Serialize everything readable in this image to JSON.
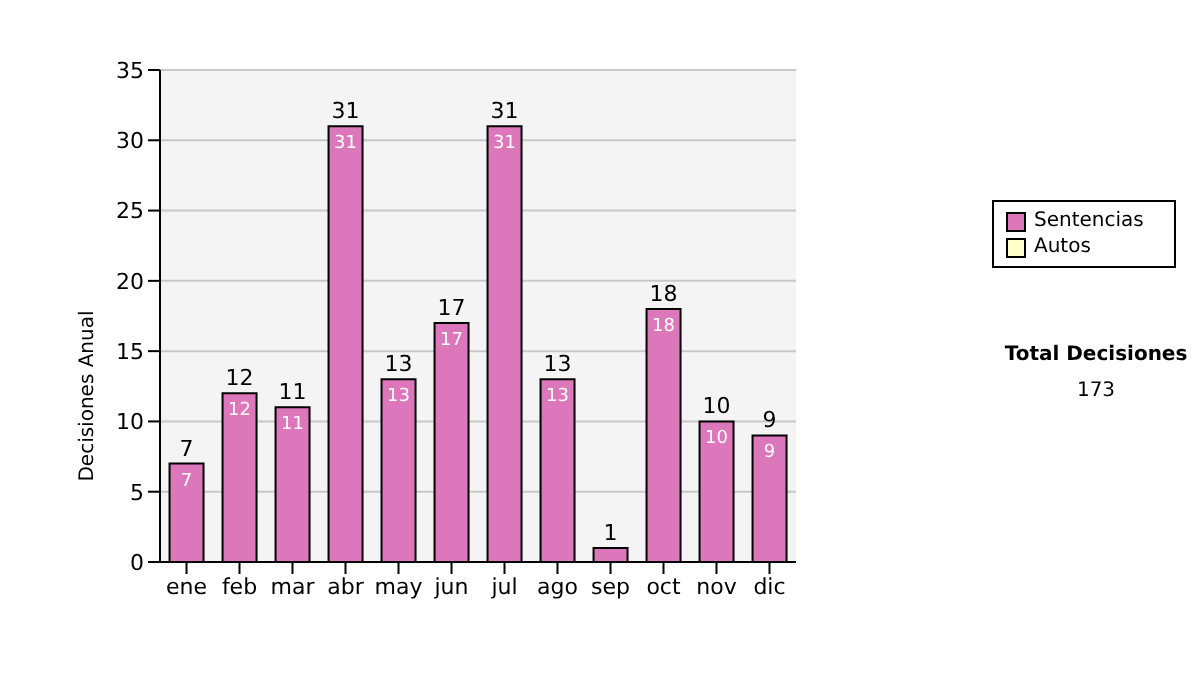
{
  "chart_data": {
    "type": "bar",
    "ylabel": "Decisiones Anual",
    "categories": [
      "ene",
      "feb",
      "mar",
      "abr",
      "may",
      "jun",
      "jul",
      "ago",
      "sep",
      "oct",
      "nov",
      "dic"
    ],
    "series": [
      {
        "name": "Sentencias",
        "color": "#dd77bb",
        "values": [
          7,
          12,
          11,
          31,
          13,
          17,
          31,
          13,
          1,
          18,
          10,
          9
        ],
        "value_labels": [
          "7",
          "12",
          "11",
          "31",
          "13",
          "17",
          "31",
          "13",
          null,
          "18",
          "10",
          "9"
        ]
      },
      {
        "name": "Autos",
        "color": "#ffffcc",
        "values": [
          null,
          null,
          null,
          null,
          null,
          null,
          null,
          null,
          null,
          null,
          null,
          null
        ]
      }
    ],
    "stacked": true,
    "totals": [
      "7",
      "12",
      "11",
      "31",
      "13",
      "17",
      "31",
      "13",
      "1",
      "18",
      "10",
      "9"
    ],
    "ylim": [
      0,
      35
    ],
    "yticks": [
      0,
      5,
      10,
      15,
      20,
      25,
      30,
      35
    ],
    "grid": "y",
    "legend": "right",
    "annotations": [
      "Total Decisiones",
      "173"
    ]
  }
}
